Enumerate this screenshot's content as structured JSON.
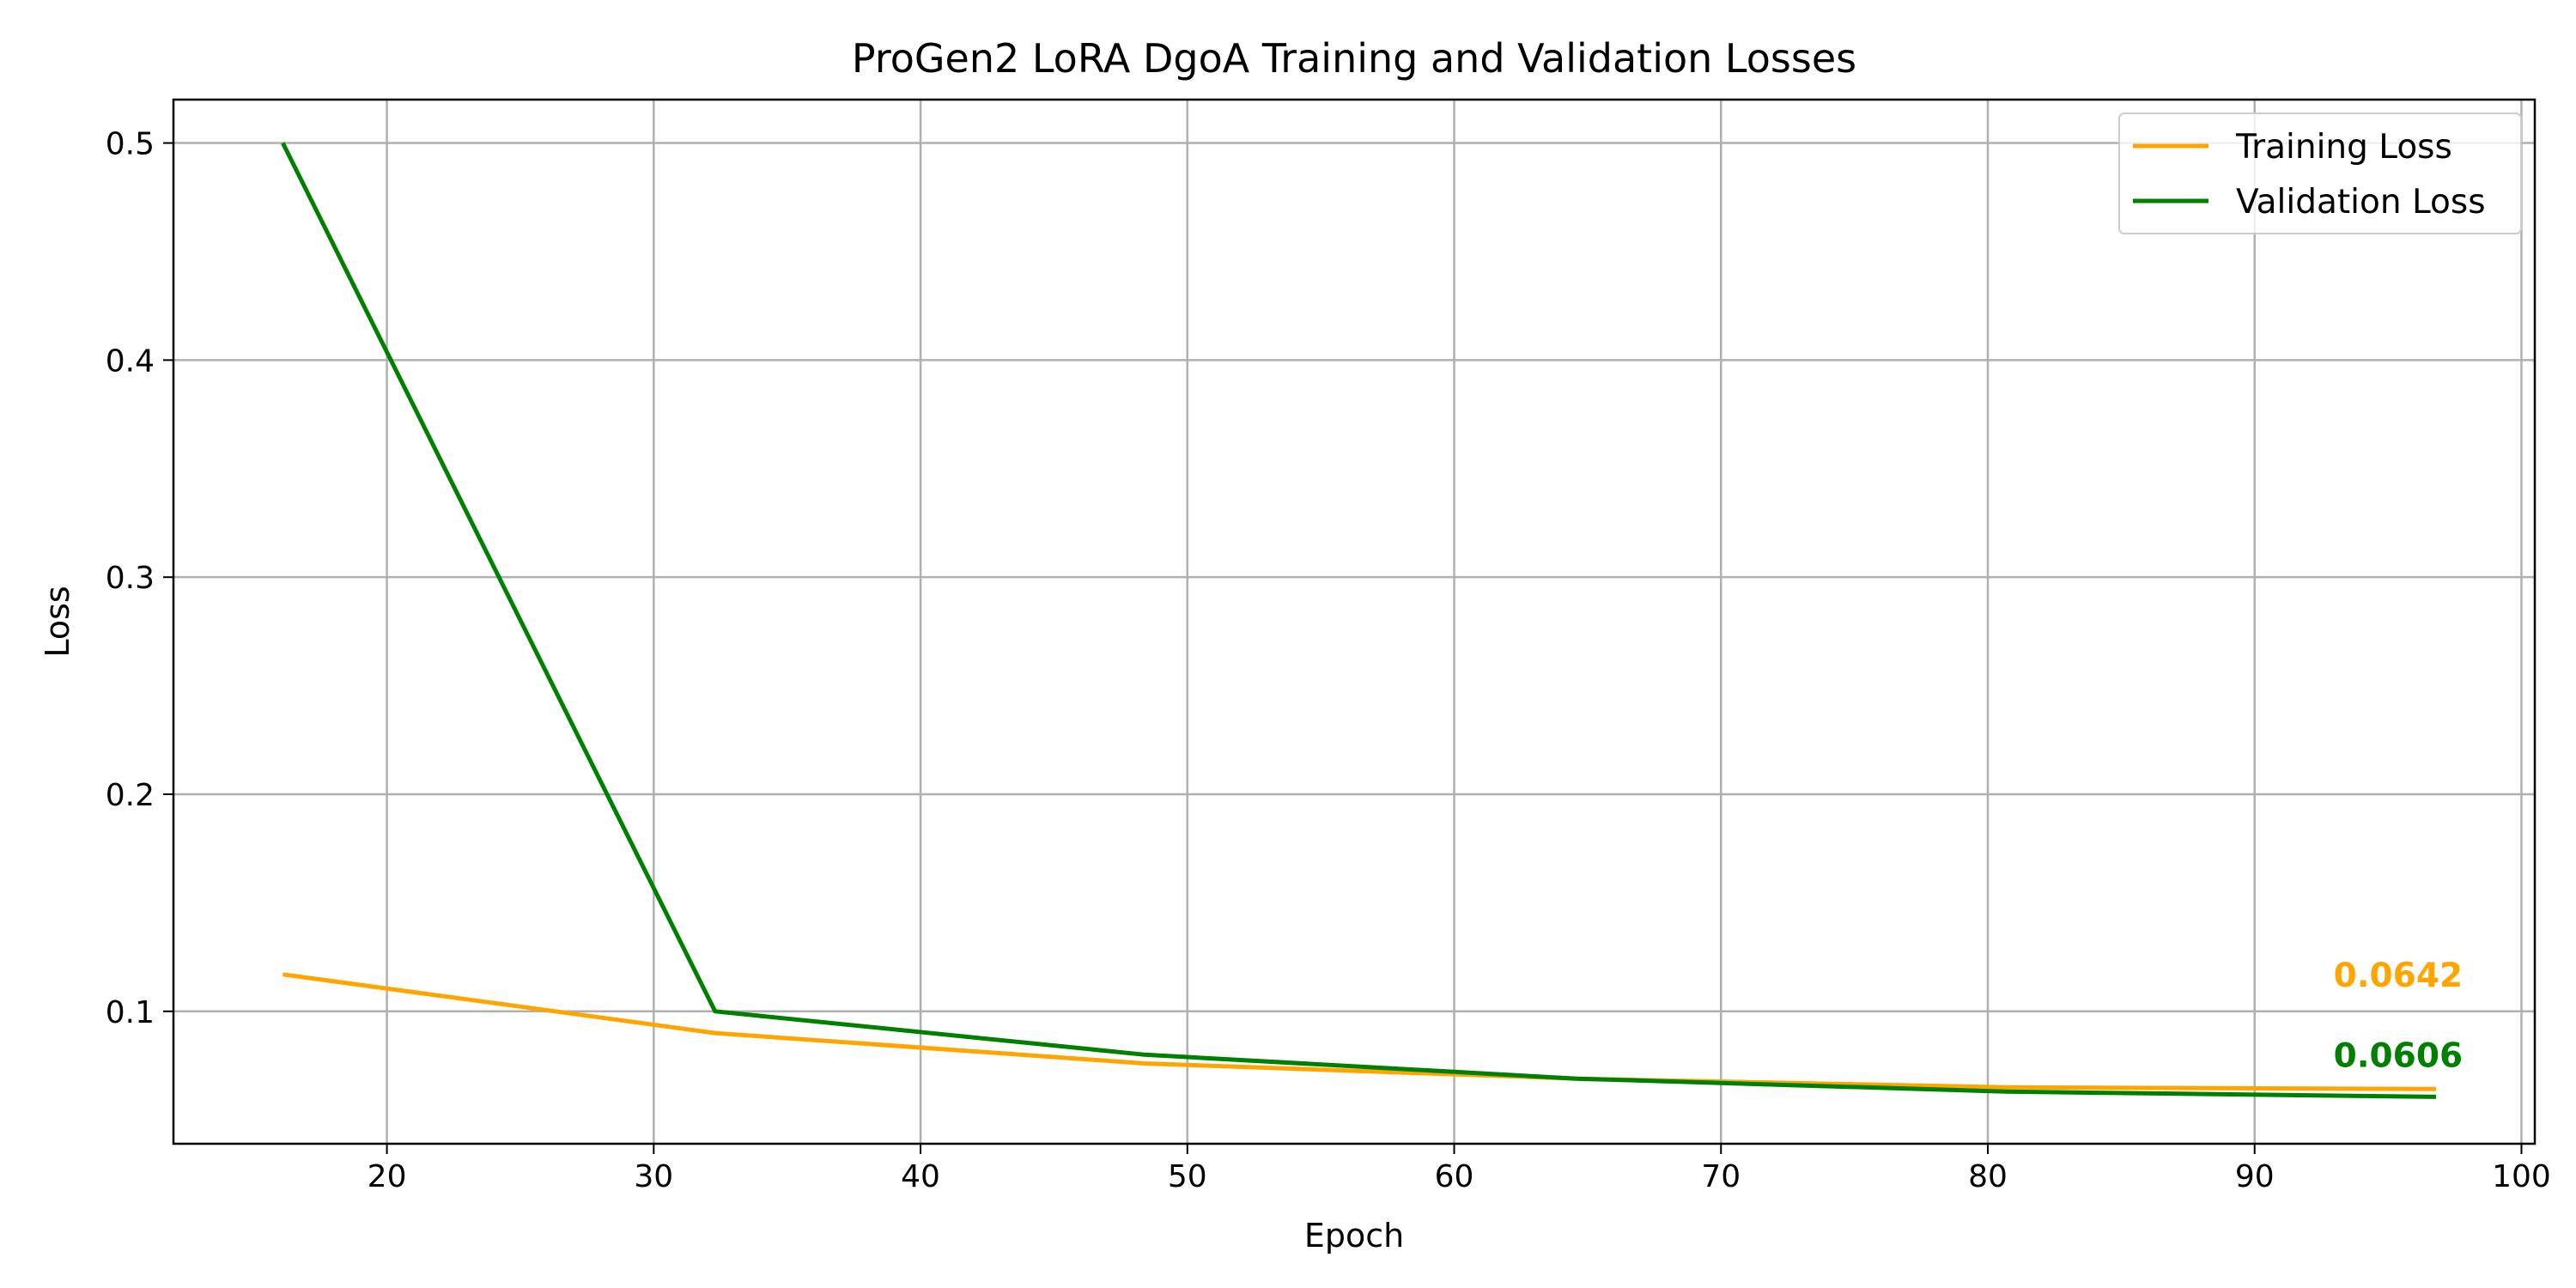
{
  "chart_data": {
    "type": "line",
    "title": "ProGen2 LoRA DgoA Training and Validation Losses",
    "xlabel": "Epoch",
    "ylabel": "Loss",
    "xlim": [
      12,
      100.5
    ],
    "ylim": [
      0.039,
      0.52
    ],
    "xticks": [
      20,
      30,
      40,
      50,
      60,
      70,
      80,
      90,
      100
    ],
    "yticks": [
      0.1,
      0.2,
      0.3,
      0.4,
      0.5
    ],
    "xtick_labels": [
      "20",
      "30",
      "40",
      "50",
      "60",
      "70",
      "80",
      "90",
      "100"
    ],
    "ytick_labels": [
      "0.1",
      "0.2",
      "0.3",
      "0.4",
      "0.5"
    ],
    "grid": true,
    "legend_position": "top-right",
    "series": [
      {
        "name": "Training Loss",
        "color": "#ffa500",
        "x": [
          16.1,
          32.3,
          48.4,
          64.6,
          80.7,
          96.8
        ],
        "y": [
          0.117,
          0.09,
          0.076,
          0.069,
          0.065,
          0.0642
        ]
      },
      {
        "name": "Validation Loss",
        "color": "#008000",
        "x": [
          16.1,
          32.3,
          48.4,
          64.6,
          80.7,
          96.8
        ],
        "y": [
          0.5,
          0.1,
          0.08,
          0.069,
          0.063,
          0.0606
        ]
      }
    ],
    "annotations": [
      {
        "text": "0.0642",
        "color": "#ffa500",
        "x": 97.8,
        "y": 0.117
      },
      {
        "text": "0.0606",
        "color": "#008000",
        "x": 97.8,
        "y": 0.08
      }
    ]
  }
}
